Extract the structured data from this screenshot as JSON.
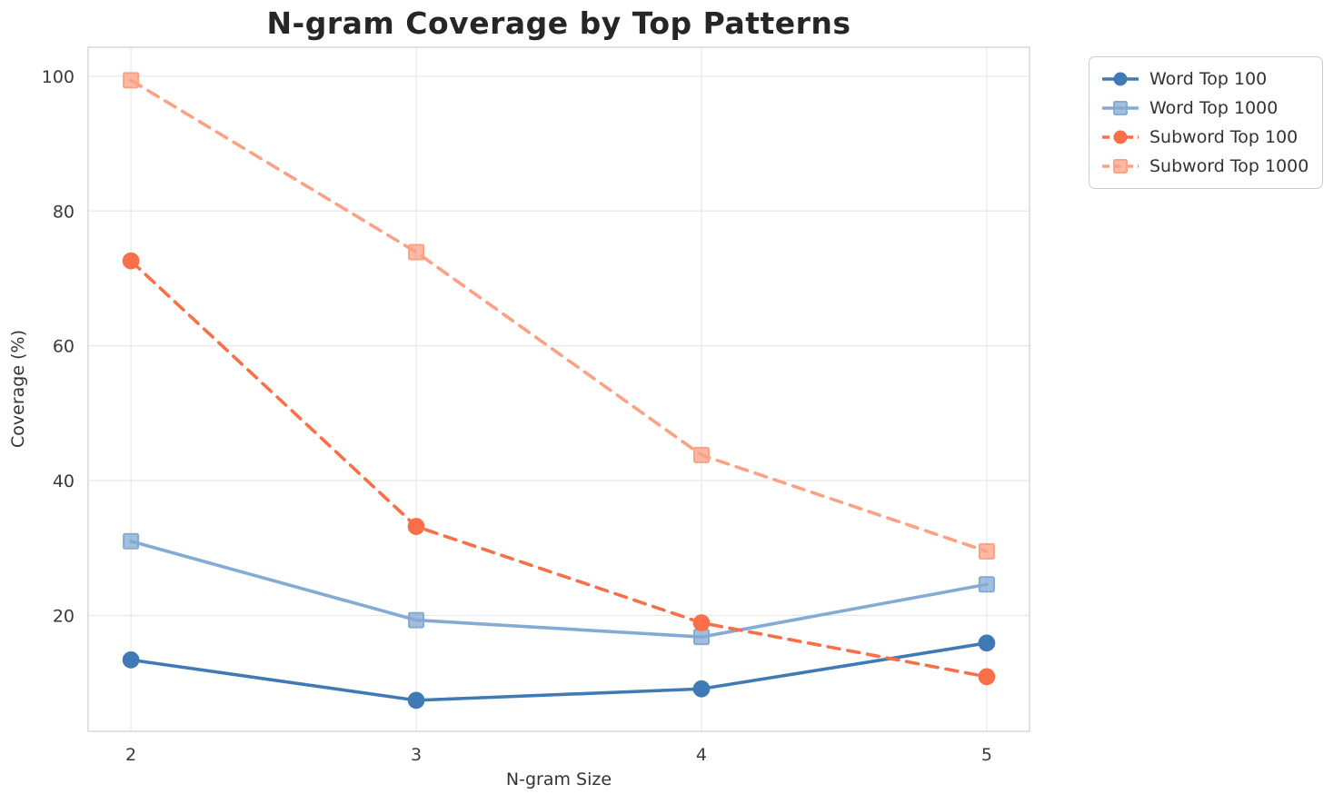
{
  "title": "N-gram Coverage by Top Patterns",
  "chart_data": {
    "type": "line",
    "x": [
      2,
      3,
      4,
      5
    ],
    "xticks": [
      "2",
      "3",
      "4",
      "5"
    ],
    "yticks": [
      20,
      40,
      60,
      80,
      100
    ],
    "xlabel": "N-gram Size",
    "ylabel": "Coverage (%)",
    "xlim": [
      1.85,
      5.15
    ],
    "ylim": [
      2.8,
      104.3
    ],
    "grid": true,
    "legend_position": "upper-right-outside",
    "series": [
      {
        "name": "Word Top 100",
        "values": [
          13.4,
          7.4,
          9.1,
          15.9
        ],
        "color": "#3f7ab5",
        "line_style": "solid",
        "marker": "circle"
      },
      {
        "name": "Word Top 1000",
        "values": [
          31.0,
          19.3,
          16.8,
          24.6
        ],
        "color": "#83abd3",
        "line_style": "solid",
        "marker": "square"
      },
      {
        "name": "Subword Top 100",
        "values": [
          72.6,
          33.2,
          18.9,
          10.9
        ],
        "color": "#f86f48",
        "line_style": "dashed",
        "marker": "circle"
      },
      {
        "name": "Subword Top 1000",
        "values": [
          99.4,
          73.9,
          43.8,
          29.5
        ],
        "color": "#fba285",
        "line_style": "dashed",
        "marker": "square"
      }
    ],
    "style": {
      "background": "#ffffff",
      "grid_color": "#e8e8e8",
      "spine_color": "#d5d5d5",
      "tick_color": "#3a3a3a",
      "title_color": "#262626"
    }
  }
}
